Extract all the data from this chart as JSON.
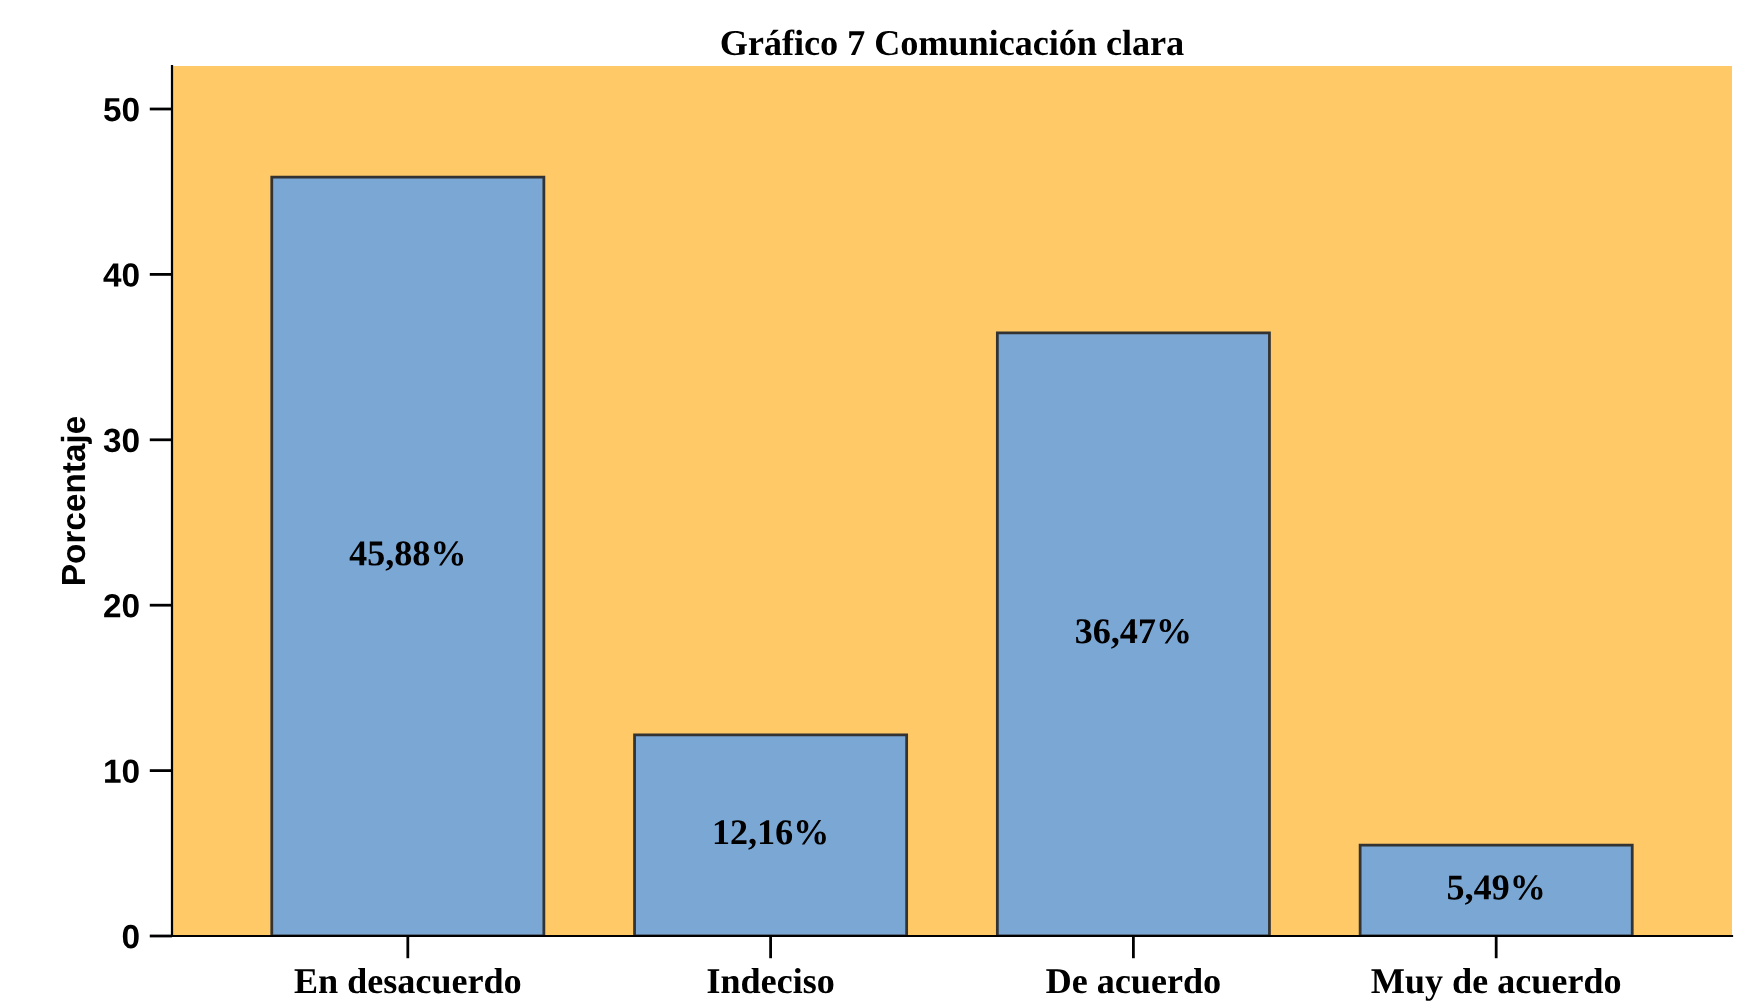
{
  "chart_data": {
    "type": "bar",
    "title": "Gráfico 7 Comunicación clara",
    "ylabel": "Porcentaje",
    "categories": [
      "En desacuerdo",
      "Indeciso",
      "De acuerdo",
      "Muy de acuerdo"
    ],
    "values": [
      45.88,
      12.16,
      36.47,
      5.49
    ],
    "value_labels": [
      "45,88%",
      "12,16%",
      "36,47%",
      "5,49%"
    ],
    "color": "#7ba7d4",
    "ylim": [
      0,
      52.6
    ],
    "yticks": [
      0,
      10,
      20,
      30,
      40,
      50
    ],
    "grid": false
  }
}
